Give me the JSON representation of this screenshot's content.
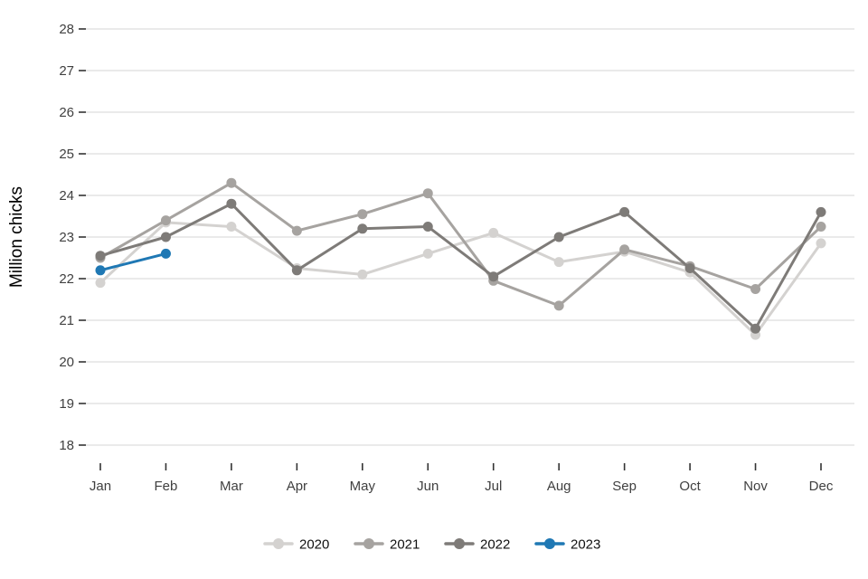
{
  "chart_data": {
    "type": "line",
    "title": "",
    "xlabel": "",
    "ylabel": "Million chicks",
    "x": [
      "Jan",
      "Feb",
      "Mar",
      "Apr",
      "May",
      "Jun",
      "Jul",
      "Aug",
      "Sep",
      "Oct",
      "Nov",
      "Dec"
    ],
    "ylim": [
      18,
      28.3
    ],
    "yticks": [
      18,
      19,
      20,
      21,
      22,
      23,
      24,
      25,
      26,
      27,
      28
    ],
    "grid": true,
    "legend_position": "bottom",
    "series": [
      {
        "name": "2020",
        "color": "#d4d2d0",
        "values": [
          21.9,
          23.35,
          23.25,
          22.25,
          22.1,
          22.6,
          23.1,
          22.4,
          22.65,
          22.15,
          20.65,
          22.85
        ]
      },
      {
        "name": "2021",
        "color": "#a6a3a0",
        "values": [
          22.5,
          23.4,
          24.3,
          23.15,
          23.55,
          24.05,
          21.95,
          21.35,
          22.7,
          22.3,
          21.75,
          23.25
        ]
      },
      {
        "name": "2022",
        "color": "#7e7b78",
        "values": [
          22.55,
          23.0,
          23.8,
          22.2,
          23.2,
          23.25,
          22.05,
          23.0,
          23.6,
          22.25,
          20.8,
          23.6
        ]
      },
      {
        "name": "2023",
        "color": "#1f78b4",
        "values": [
          22.2,
          22.6
        ]
      }
    ],
    "colors": {
      "grid": "#e4e4e4",
      "tick_mark": "#333333",
      "tick_label": "#404040",
      "axis_label": "#000000",
      "legend_text": "#111111",
      "background": "#ffffff"
    }
  }
}
